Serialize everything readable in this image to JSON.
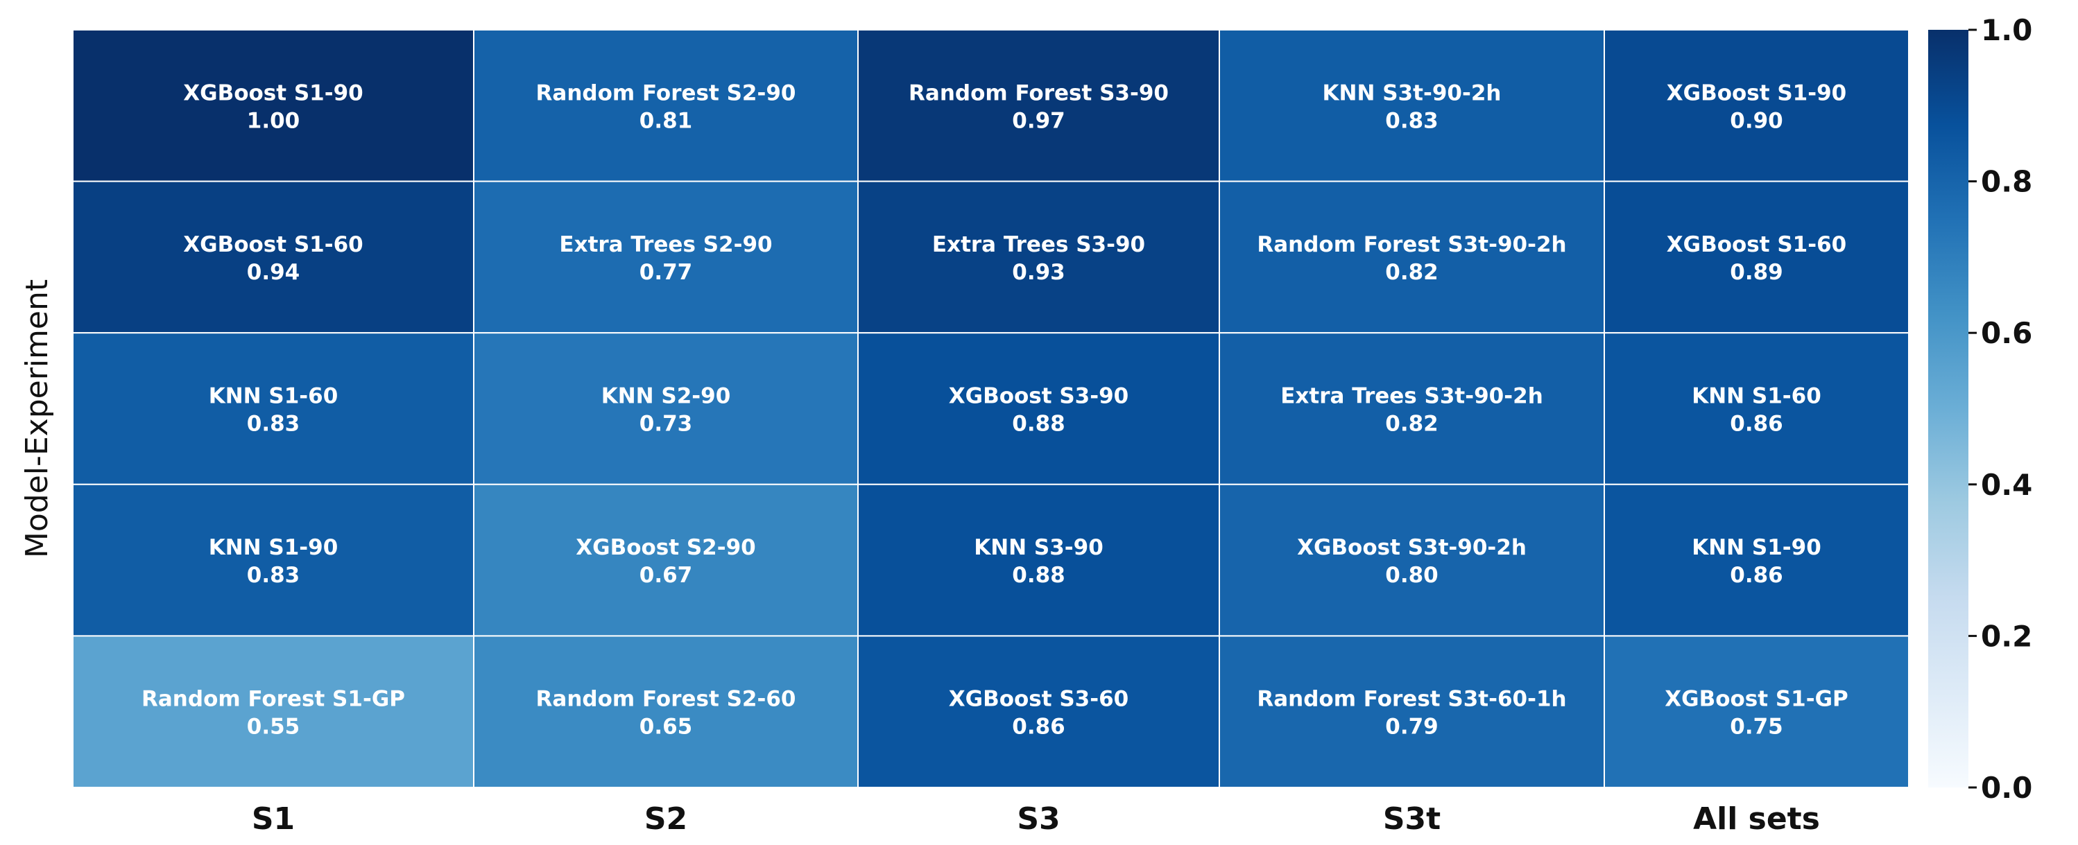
{
  "chart_data": {
    "type": "heatmap",
    "ylabel": "Model-Experiment",
    "xlabel": "",
    "columns": [
      "S1",
      "S2",
      "S3",
      "S3t",
      "All sets"
    ],
    "rows": [
      [
        {
          "label": "XGBoost S1-90",
          "value": 1.0
        },
        {
          "label": "Random Forest S2-90",
          "value": 0.81
        },
        {
          "label": "Random Forest S3-90",
          "value": 0.97
        },
        {
          "label": "KNN S3t-90-2h",
          "value": 0.83
        },
        {
          "label": "XGBoost S1-90",
          "value": 0.9
        }
      ],
      [
        {
          "label": "XGBoost S1-60",
          "value": 0.94
        },
        {
          "label": "Extra Trees S2-90",
          "value": 0.77
        },
        {
          "label": "Extra Trees S3-90",
          "value": 0.93
        },
        {
          "label": "Random Forest S3t-90-2h",
          "value": 0.82
        },
        {
          "label": "XGBoost S1-60",
          "value": 0.89
        }
      ],
      [
        {
          "label": "KNN S1-60",
          "value": 0.83
        },
        {
          "label": "KNN S2-90",
          "value": 0.73
        },
        {
          "label": "XGBoost S3-90",
          "value": 0.88
        },
        {
          "label": "Extra Trees S3t-90-2h",
          "value": 0.82
        },
        {
          "label": "KNN S1-60",
          "value": 0.86
        }
      ],
      [
        {
          "label": "KNN S1-90",
          "value": 0.83
        },
        {
          "label": "XGBoost S2-90",
          "value": 0.67
        },
        {
          "label": "KNN S3-90",
          "value": 0.88
        },
        {
          "label": "XGBoost S3t-90-2h",
          "value": 0.8
        },
        {
          "label": "KNN S1-90",
          "value": 0.86
        }
      ],
      [
        {
          "label": "Random Forest S1-GP",
          "value": 0.55
        },
        {
          "label": "Random Forest S2-60",
          "value": 0.65
        },
        {
          "label": "XGBoost S3-60",
          "value": 0.86
        },
        {
          "label": "Random Forest S3t-60-1h",
          "value": 0.79
        },
        {
          "label": "XGBoost S1-GP",
          "value": 0.75
        }
      ]
    ],
    "colormap": "Blues",
    "colorbar": {
      "range": [
        0.0,
        1.0
      ],
      "ticks": [
        "0.0",
        "0.2",
        "0.4",
        "0.6",
        "0.8",
        "1.0"
      ],
      "colors": [
        "#f7fbff",
        "#deebf7",
        "#c6dbef",
        "#9ecae1",
        "#6baed6",
        "#4292c6",
        "#2171b5",
        "#08519c",
        "#08306b"
      ]
    },
    "grid": true
  }
}
